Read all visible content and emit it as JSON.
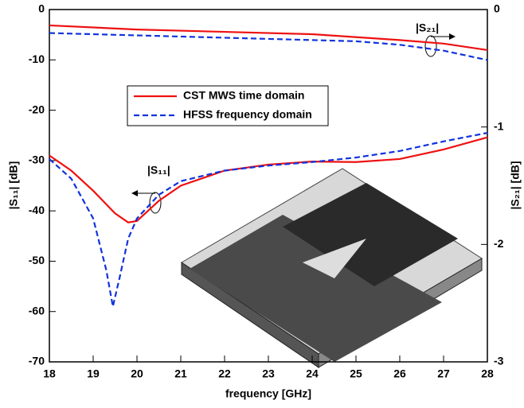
{
  "chart_data": {
    "type": "line",
    "xlabel": "frequency [GHz]",
    "ylabel": "|S₁₁| [dB]",
    "y2label": "|S₂₁| [dB]",
    "xlim": [
      18,
      28
    ],
    "xticks": [
      18,
      19,
      20,
      21,
      22,
      23,
      24,
      25,
      26,
      27,
      28
    ],
    "ylim": [
      -70,
      0
    ],
    "yticks": [
      0,
      -10,
      -20,
      -30,
      -40,
      -50,
      -60,
      -70
    ],
    "y2lim": [
      -3,
      0
    ],
    "y2ticks": [
      0,
      -1,
      -2,
      -3
    ],
    "annotations": [
      "|S₂₁|",
      "|S₁₁|"
    ],
    "series": [
      {
        "name": "CST MWS time domain",
        "color": "#ee1111",
        "dash": false,
        "axis": "y2",
        "x": [
          18,
          20,
          22,
          24,
          26,
          27,
          28
        ],
        "values": [
          -0.135,
          -0.17,
          -0.19,
          -0.21,
          -0.26,
          -0.29,
          -0.345
        ]
      },
      {
        "name": "HFSS frequency domain",
        "color": "#1133dd",
        "dash": true,
        "axis": "y2",
        "x": [
          18,
          20,
          22,
          24,
          25,
          26,
          27,
          28
        ],
        "values": [
          -0.2,
          -0.22,
          -0.24,
          -0.26,
          -0.27,
          -0.3,
          -0.35,
          -0.43
        ]
      },
      {
        "name": "CST MWS time domain",
        "color": "#ee1111",
        "dash": false,
        "axis": "y",
        "x": [
          18,
          18.5,
          19,
          19.5,
          19.8,
          20,
          20.5,
          21,
          22,
          23,
          24,
          25,
          26,
          27,
          28
        ],
        "values": [
          -29,
          -32,
          -36,
          -40.5,
          -42.3,
          -42,
          -38,
          -35,
          -32,
          -30.8,
          -30.2,
          -30.3,
          -29.7,
          -27.8,
          -25.4
        ]
      },
      {
        "name": "HFSS frequency domain",
        "color": "#1133dd",
        "dash": true,
        "axis": "y",
        "x": [
          18,
          18.5,
          19,
          19.3,
          19.45,
          19.6,
          19.8,
          20,
          20.5,
          21,
          22,
          23,
          24,
          25,
          26,
          27,
          28
        ],
        "values": [
          -29.7,
          -33.6,
          -41.5,
          -51.8,
          -59,
          -53.4,
          -45.5,
          -41.5,
          -36.8,
          -34.1,
          -32,
          -31,
          -30.3,
          -29.4,
          -28.1,
          -26.2,
          -24.5
        ]
      }
    ]
  }
}
